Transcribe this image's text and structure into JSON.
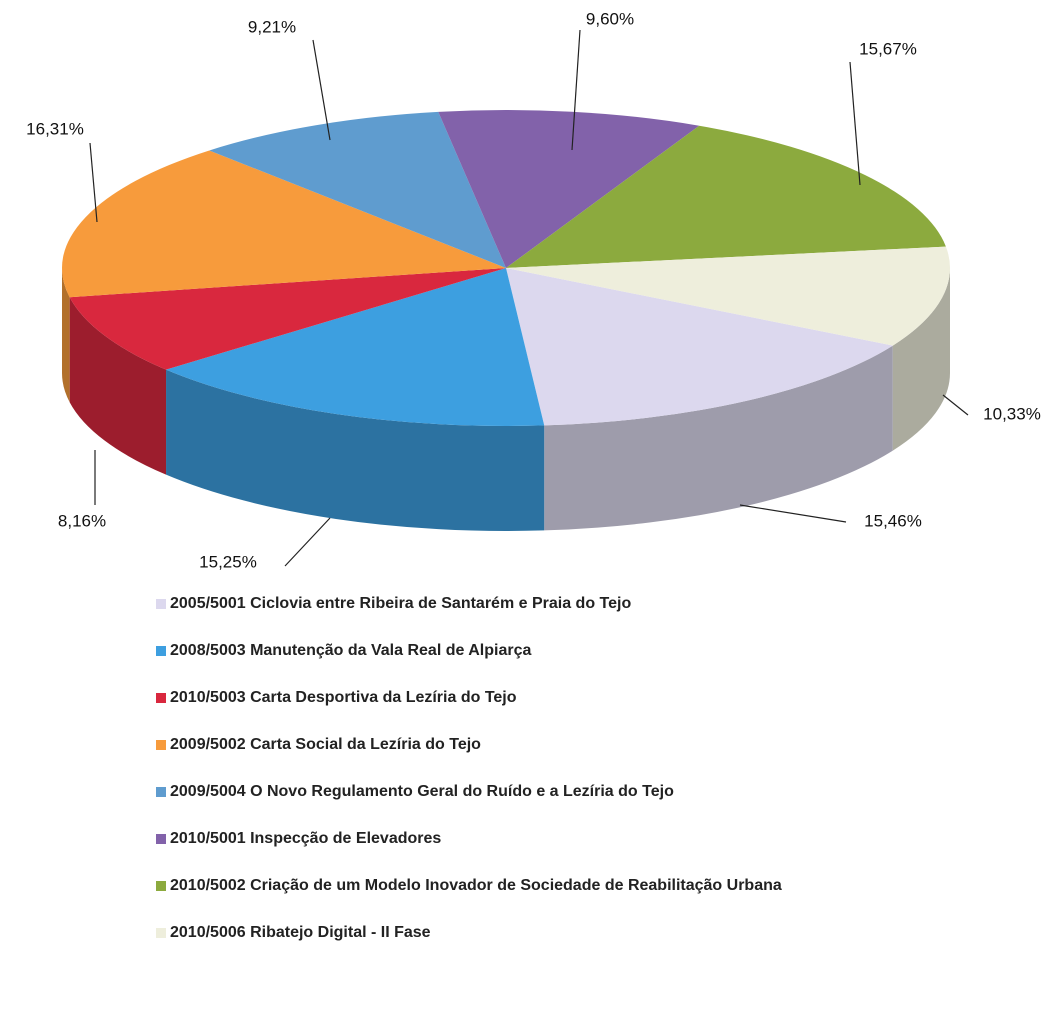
{
  "chart_data": {
    "type": "pie",
    "categories": [
      "2005/5001 Ciclovia entre Ribeira de Santarém e Praia do Tejo",
      "2008/5003 Manutenção da Vala Real de Alpiarça",
      "2010/5003 Carta Desportiva da Lezíria do Tejo",
      "2009/5002 Carta Social da Lezíria do Tejo",
      "2009/5004 O Novo Regulamento Geral do Ruído e a Lezíria do Tejo",
      "2010/5001 Inspecção de Elevadores",
      "2010/5002 Criação de um Modelo Inovador de Sociedade de Reabilitação Urbana",
      "2010/5006 Ribatejo Digital - II Fase"
    ],
    "values": [
      15.46,
      15.25,
      8.16,
      16.31,
      9.21,
      9.6,
      15.67,
      10.33
    ],
    "value_labels": [
      "15,46%",
      "15,25%",
      "8,16%",
      "16,31%",
      "9,21%",
      "9,60%",
      "15,67%",
      "10,33%"
    ],
    "colors": [
      "#dcd8ee",
      "#3d9fe0",
      "#d9283e",
      "#f79b3c",
      "#5f9ccf",
      "#8262aa",
      "#8caa3e",
      "#eeeedc"
    ],
    "legend": "bottom"
  }
}
